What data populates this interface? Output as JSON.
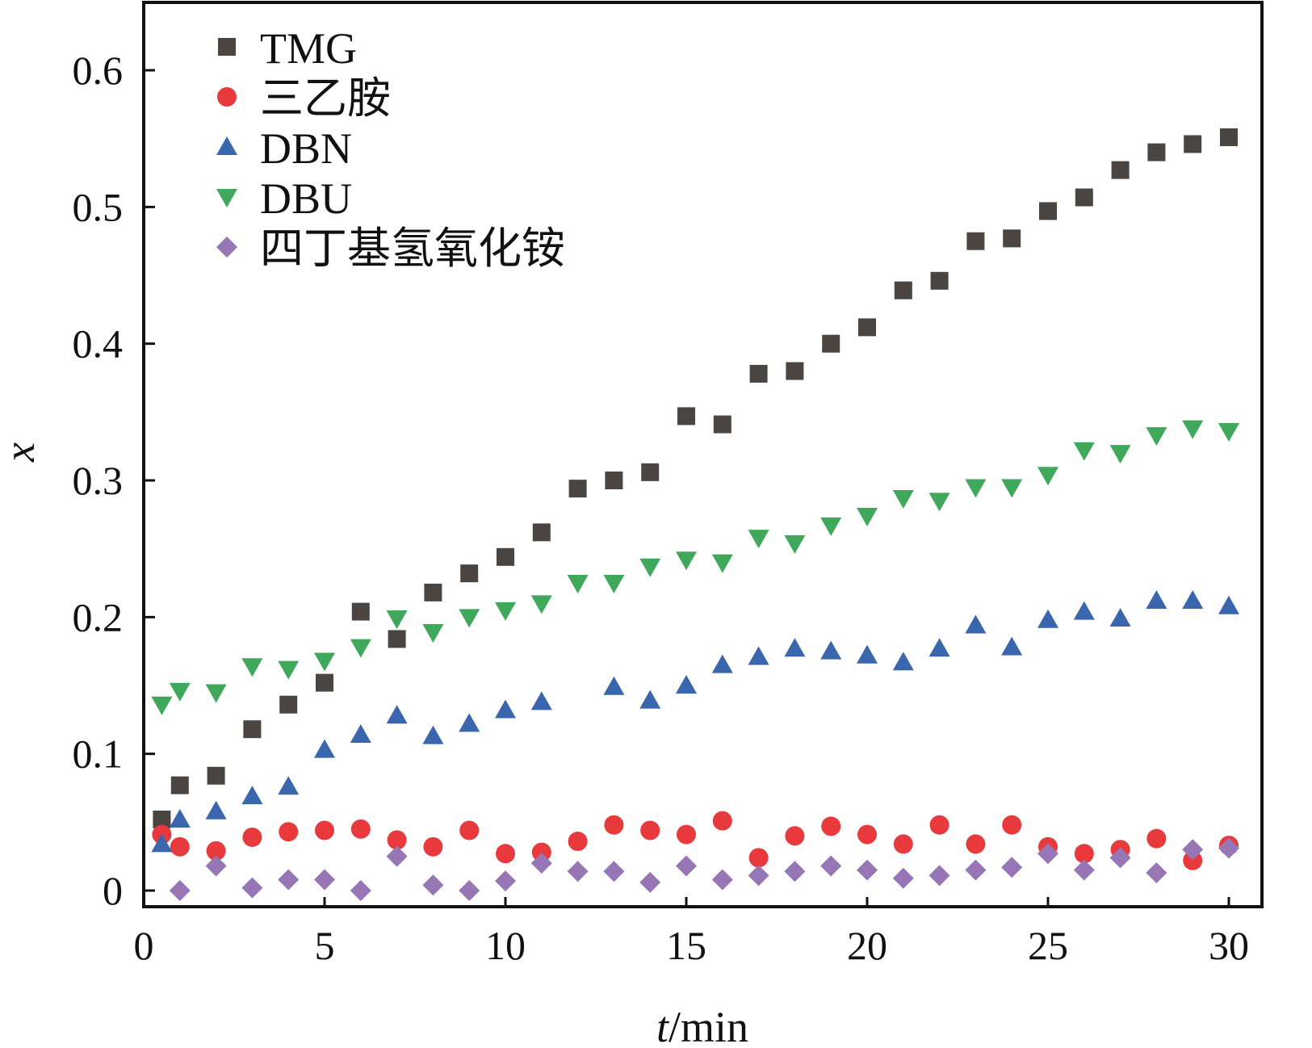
{
  "chart_data": {
    "type": "scatter",
    "title": "",
    "xlabel_italic": "t",
    "xlabel_unit": "/min",
    "ylabel": "x",
    "xlim": [
      0,
      30.8
    ],
    "ylim": [
      -0.012,
      0.65
    ],
    "xticks": [
      "0",
      "5",
      "10",
      "15",
      "20",
      "25",
      "30"
    ],
    "yticks": [
      "0",
      "0.1",
      "0.2",
      "0.3",
      "0.4",
      "0.5",
      "0.6"
    ],
    "legend_position": "top-left",
    "x": [
      0.5,
      1,
      2,
      3,
      4,
      5,
      6,
      7,
      8,
      9,
      10,
      11,
      12,
      13,
      14,
      15,
      16,
      17,
      18,
      19,
      20,
      21,
      22,
      23,
      24,
      25,
      26,
      27,
      28,
      29,
      30
    ],
    "series": [
      {
        "name": "TMG",
        "marker": "square",
        "color": "#4a4541",
        "values": [
          0.052,
          0.077,
          0.084,
          0.118,
          0.136,
          0.152,
          0.204,
          0.184,
          0.218,
          0.232,
          0.244,
          0.262,
          0.294,
          0.3,
          0.306,
          0.347,
          0.341,
          0.378,
          0.38,
          0.4,
          0.412,
          0.439,
          0.446,
          0.475,
          0.477,
          0.497,
          0.507,
          0.527,
          0.54,
          0.546,
          0.551
        ]
      },
      {
        "name": "三乙胺",
        "marker": "circle",
        "color": "#e8393c",
        "values": [
          0.041,
          0.032,
          0.029,
          0.039,
          0.043,
          0.044,
          0.045,
          0.037,
          0.032,
          0.044,
          0.027,
          0.028,
          0.036,
          0.048,
          0.044,
          0.041,
          0.051,
          0.024,
          0.04,
          0.047,
          0.041,
          0.034,
          0.048,
          0.034,
          0.048,
          0.032,
          0.027,
          0.03,
          0.038,
          0.022,
          0.033
        ]
      },
      {
        "name": "DBN",
        "marker": "triangle-up",
        "color": "#3a66ad",
        "values": [
          0.034,
          0.052,
          0.058,
          0.069,
          0.076,
          0.103,
          0.114,
          0.128,
          0.113,
          0.122,
          0.132,
          0.138,
          null,
          0.149,
          0.139,
          0.15,
          0.165,
          0.171,
          0.177,
          0.175,
          0.172,
          0.167,
          0.177,
          0.194,
          0.178,
          0.198,
          0.204,
          0.199,
          0.212,
          0.212,
          0.208
        ]
      },
      {
        "name": "DBU",
        "marker": "triangle-down",
        "color": "#3fa85a",
        "values": [
          0.136,
          0.146,
          0.145,
          0.164,
          0.162,
          0.168,
          0.178,
          0.199,
          0.189,
          0.2,
          0.205,
          0.21,
          0.225,
          0.225,
          0.237,
          0.242,
          0.24,
          0.258,
          0.254,
          0.267,
          0.274,
          0.287,
          0.285,
          0.295,
          0.295,
          0.304,
          0.322,
          0.32,
          0.333,
          0.338,
          0.336
        ]
      },
      {
        "name": "四丁基氢氧化铵",
        "marker": "diamond",
        "color": "#9676b5",
        "values": [
          null,
          0.0,
          0.018,
          0.002,
          0.008,
          0.008,
          0.0,
          0.025,
          0.004,
          0.0,
          0.007,
          0.02,
          0.014,
          0.014,
          0.006,
          0.018,
          0.008,
          0.011,
          0.014,
          0.018,
          0.015,
          0.009,
          0.011,
          0.015,
          0.017,
          0.027,
          0.015,
          0.024,
          0.013,
          0.03,
          0.031
        ]
      }
    ]
  }
}
